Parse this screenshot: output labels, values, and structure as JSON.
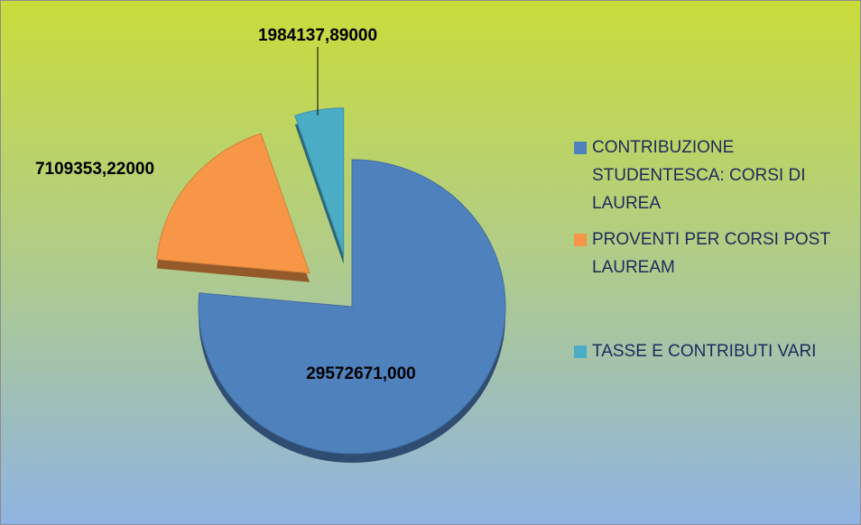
{
  "chart_data": {
    "type": "pie",
    "categories": [
      "CONTRIBUZIONE STUDENTESCA: CORSI DI LAUREA",
      "PROVENTI PER CORSI POST LAUREAM",
      "TASSE E CONTRIBUTI VARI"
    ],
    "values": [
      29572671,
      7109353.22,
      1984137.89
    ],
    "value_labels": [
      "29572671,000",
      "7109353,22000",
      "1984137,89000"
    ],
    "colors": [
      "#4f81bd",
      "#f79646",
      "#4bacc6"
    ],
    "legend": "right"
  }
}
